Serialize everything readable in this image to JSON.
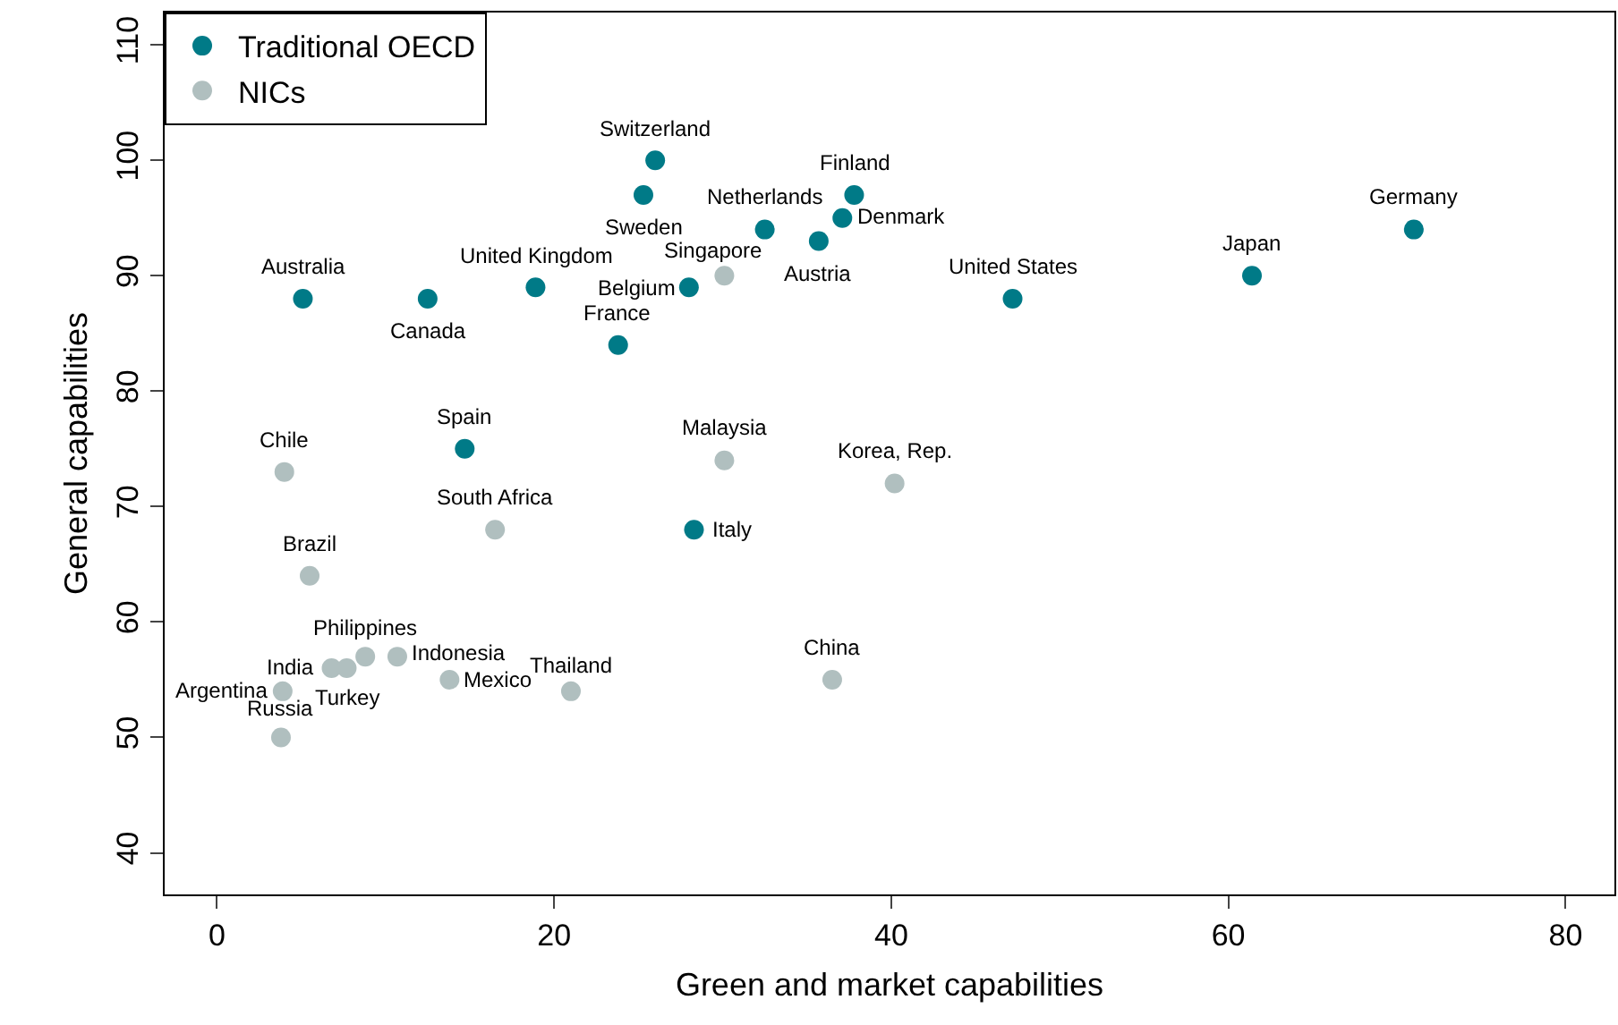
{
  "chart_data": {
    "type": "scatter",
    "xlabel": "Green and market capabilities",
    "ylabel": "General capabilities",
    "xlim": [
      -3.1,
      82.9
    ],
    "ylim": [
      36.4,
      112.8
    ],
    "xticks": [
      0,
      20,
      40,
      60,
      80
    ],
    "yticks": [
      40,
      50,
      60,
      70,
      80,
      90,
      100,
      110
    ],
    "legend": "top left",
    "marker": "circle",
    "series": [
      {
        "name": "Traditional OECD",
        "color": "#007a87",
        "x": [
          26.0,
          25.3,
          37.8,
          37.1,
          32.5,
          35.7,
          71.0,
          61.4,
          47.2,
          5.1,
          12.5,
          18.9,
          28.0,
          23.8,
          14.7,
          28.3
        ],
        "values": [
          100,
          97,
          97,
          95,
          94,
          93,
          94,
          90,
          88,
          88,
          88,
          89,
          89,
          84,
          75,
          68
        ]
      },
      {
        "name": "NICs",
        "color": "#b0bfbf",
        "x": [
          30.1,
          4.0,
          30.1,
          40.2,
          16.5,
          5.5,
          8.8,
          10.7,
          6.8,
          7.7,
          3.9,
          3.8,
          13.8,
          21.0,
          36.5
        ],
        "values": [
          90,
          73,
          74,
          72,
          68,
          64,
          57,
          57,
          56,
          56,
          54,
          50,
          55,
          54,
          55
        ]
      }
    ],
    "annotations": [
      {
        "text": "Switzerland",
        "x": 26.0,
        "y": 100
      },
      {
        "text": "Sweden",
        "x": 25.3,
        "y": 97
      },
      {
        "text": "Finland",
        "x": 37.8,
        "y": 97
      },
      {
        "text": "Denmark",
        "x": 37.1,
        "y": 95
      },
      {
        "text": "Netherlands",
        "x": 32.5,
        "y": 94
      },
      {
        "text": "Austria",
        "x": 35.7,
        "y": 93
      },
      {
        "text": "Germany",
        "x": 71.0,
        "y": 94
      },
      {
        "text": "Japan",
        "x": 61.4,
        "y": 90
      },
      {
        "text": "United States",
        "x": 47.2,
        "y": 88
      },
      {
        "text": "Australia",
        "x": 5.1,
        "y": 88
      },
      {
        "text": "Canada",
        "x": 12.5,
        "y": 88
      },
      {
        "text": "United Kingdom",
        "x": 18.9,
        "y": 89
      },
      {
        "text": "Belgium",
        "x": 28.0,
        "y": 89
      },
      {
        "text": "France",
        "x": 23.8,
        "y": 84
      },
      {
        "text": "Spain",
        "x": 14.7,
        "y": 75
      },
      {
        "text": "Italy",
        "x": 28.3,
        "y": 68
      },
      {
        "text": "Singapore",
        "x": 30.1,
        "y": 90
      },
      {
        "text": "Chile",
        "x": 4.0,
        "y": 73
      },
      {
        "text": "Malaysia",
        "x": 30.1,
        "y": 74
      },
      {
        "text": "Korea, Rep.",
        "x": 40.2,
        "y": 72
      },
      {
        "text": "South Africa",
        "x": 16.5,
        "y": 68
      },
      {
        "text": "Brazil",
        "x": 5.5,
        "y": 64
      },
      {
        "text": "Philippines",
        "x": 8.8,
        "y": 57
      },
      {
        "text": "Indonesia",
        "x": 10.7,
        "y": 57
      },
      {
        "text": "India",
        "x": 6.8,
        "y": 56
      },
      {
        "text": "Turkey",
        "x": 7.7,
        "y": 56
      },
      {
        "text": "Argentina",
        "x": 3.9,
        "y": 54
      },
      {
        "text": "Russia",
        "x": 3.8,
        "y": 50
      },
      {
        "text": "Mexico",
        "x": 13.8,
        "y": 55
      },
      {
        "text": "Thailand",
        "x": 21.0,
        "y": 54
      },
      {
        "text": "China",
        "x": 36.5,
        "y": 55
      }
    ]
  }
}
